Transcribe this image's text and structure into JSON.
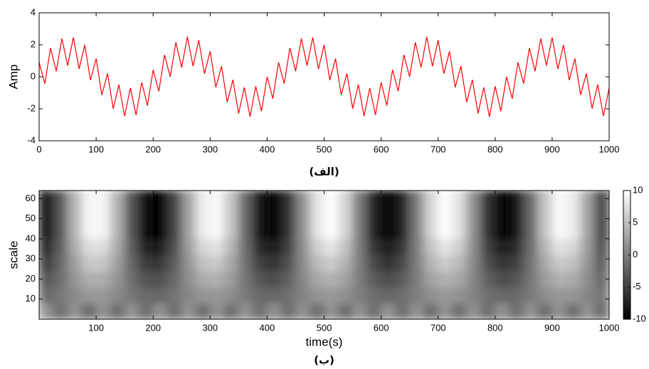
{
  "chart_data": [
    {
      "type": "line",
      "ylabel": "Amp",
      "caption": "(الف)",
      "color": "#ff0000",
      "xlim": [
        0,
        1000
      ],
      "xticks": [
        0,
        100,
        200,
        300,
        400,
        500,
        600,
        700,
        800,
        900,
        1000
      ],
      "ylim": [
        -4,
        4
      ],
      "yticks": [
        -4,
        -2,
        0,
        2,
        4
      ],
      "x": [
        0,
        10,
        20,
        30,
        40,
        50,
        60,
        70,
        80,
        90,
        100,
        110,
        120,
        130,
        140,
        150,
        160,
        170,
        180,
        190,
        200,
        210,
        220,
        230,
        240,
        250,
        260,
        270,
        280,
        290,
        300,
        310,
        320,
        330,
        340,
        350,
        360,
        370,
        380,
        390,
        400,
        410,
        420,
        430,
        440,
        450,
        460,
        470,
        480,
        490,
        500,
        510,
        520,
        530,
        540,
        550,
        560,
        570,
        580,
        590,
        600,
        610,
        620,
        630,
        640,
        650,
        660,
        670,
        680,
        690,
        700,
        710,
        720,
        730,
        740,
        750,
        760,
        770,
        780,
        790,
        800,
        810,
        820,
        830,
        840,
        850,
        860,
        870,
        880,
        890,
        900,
        910,
        920,
        930,
        940,
        950,
        960,
        970,
        980,
        990,
        1000
      ],
      "values": [
        0.9,
        -0.43,
        1.8,
        0.35,
        2.39,
        0.7,
        2.46,
        0.49,
        1.99,
        -0.21,
        1.14,
        -1.14,
        0.21,
        -1.99,
        -0.49,
        -2.46,
        -0.7,
        -2.39,
        -0.35,
        -1.8,
        0.43,
        -0.9,
        1.37,
        0,
        2.15,
        0.59,
        2.5,
        0.66,
        2.29,
        0.19,
        1.59,
        -0.66,
        0.66,
        -1.59,
        -0.19,
        -2.29,
        -0.66,
        -2.5,
        -0.59,
        -2.15,
        0,
        -1.37,
        0.9,
        -0.43,
        1.8,
        0.35,
        2.39,
        0.7,
        2.46,
        0.49,
        1.99,
        -0.21,
        1.14,
        -1.14,
        0.21,
        -1.99,
        -0.49,
        -2.46,
        -0.7,
        -2.39,
        -0.35,
        -1.8,
        0.43,
        -0.9,
        1.37,
        0,
        2.15,
        0.59,
        2.5,
        0.66,
        2.29,
        0.19,
        1.59,
        -0.66,
        0.66,
        -1.59,
        -0.19,
        -2.29,
        -0.66,
        -2.5,
        -0.59,
        -2.15,
        0,
        -1.37,
        0.9,
        -0.43,
        1.8,
        0.35,
        2.39,
        0.7,
        2.46,
        0.49,
        1.99,
        -0.21,
        1.14,
        -1.14,
        0.21,
        -1.99,
        -0.49,
        -2.46,
        -0.7
      ]
    },
    {
      "type": "heatmap",
      "xlabel": "time(s)",
      "ylabel": "scale",
      "caption": "(ب)",
      "colormap": "gray",
      "xlim": [
        0,
        1000
      ],
      "xticks": [
        100,
        200,
        300,
        400,
        500,
        600,
        700,
        800,
        900,
        1000
      ],
      "ylim": [
        0,
        64
      ],
      "yticks": [
        10,
        20,
        30,
        40,
        50,
        60
      ],
      "clim": [
        -10,
        10
      ],
      "cbarticks": [
        -10,
        -5,
        0,
        5,
        10
      ],
      "x": [
        12.5,
        37.5,
        62.5,
        87.5,
        112.5,
        137.5,
        162.5,
        187.5,
        212.5,
        237.5,
        262.5,
        287.5,
        312.5,
        337.5,
        362.5,
        387.5,
        412.5,
        437.5,
        462.5,
        487.5,
        512.5,
        537.5,
        562.5,
        587.5,
        612.5,
        637.5,
        662.5,
        687.5,
        712.5,
        737.5,
        762.5,
        787.5,
        812.5,
        837.5,
        862.5,
        887.5,
        912.5,
        937.5,
        962.5,
        987.5
      ],
      "y": [
        4,
        12,
        20,
        28,
        36,
        44,
        52,
        60
      ],
      "z": [
        [
          1.5,
          -1.5,
          1.5,
          -1.5,
          1.5,
          -1.5,
          1.5,
          -1.5,
          1.5,
          -1.5,
          1.5,
          -1.5,
          1.5,
          -1.5,
          1.5,
          -1.5,
          1.5,
          -1.5,
          1.5,
          -1.5,
          1.5,
          -1.5,
          1.5,
          -1.5,
          1.5,
          -1.5,
          1.5,
          -1.5,
          1.5,
          -1.5,
          1.5,
          -1.5,
          1.5,
          -1.5,
          1.5,
          -1.5,
          1.5,
          -1.5,
          1.5,
          -1.5
        ],
        [
          -1.8,
          -0.7,
          0.8,
          1.9,
          1.9,
          0.8,
          -0.7,
          -1.8,
          -1.9,
          -1,
          0.6,
          1.7,
          1.9,
          1.1,
          -0.4,
          -1.6,
          -2,
          -1.2,
          0.2,
          1.5,
          2,
          1.3,
          -0.1,
          -1.4,
          -2,
          -1.4,
          -0.1,
          1.3,
          2,
          1.5,
          0.2,
          -1.2,
          -2,
          -1.6,
          -0.4,
          1.1,
          1.9,
          1.7,
          0.6,
          -1
        ],
        [
          -3.6,
          -1.4,
          1.6,
          3.7,
          3.7,
          1.6,
          -1.4,
          -3.6,
          -3.8,
          -1.9,
          1.1,
          3.4,
          3.9,
          2.2,
          -0.8,
          -3.3,
          -4,
          -2.4,
          0.5,
          3.1,
          4,
          2.7,
          -0.2,
          -2.9,
          -4,
          -2.9,
          -0.2,
          2.7,
          4,
          3.1,
          0.5,
          -2.4,
          -4,
          -3.3,
          -0.8,
          2.2,
          3.9,
          3.4,
          1.1,
          -1.9
        ],
        [
          -5.4,
          -2,
          2.5,
          5.6,
          5.6,
          2.5,
          -2,
          -5.4,
          -5.7,
          -2.9,
          1.6,
          5.2,
          5.8,
          3.2,
          -1.1,
          -4.9,
          -5.9,
          -3.7,
          0.7,
          4.6,
          6,
          4,
          -0.2,
          -4.3,
          -6,
          -4.3,
          -0.2,
          4,
          6,
          4.6,
          0.7,
          -3.7,
          -5.9,
          -4.9,
          -1.1,
          3.2,
          5.8,
          5.2,
          1.6,
          -2.9
        ],
        [
          -7.2,
          -2.7,
          3.3,
          7.4,
          7.4,
          3.3,
          -2.7,
          -7.2,
          -7.6,
          -3.8,
          2.2,
          6.9,
          7.8,
          4.3,
          -1.5,
          -6.6,
          -7.9,
          -4.9,
          1,
          6.2,
          8,
          5.4,
          -0.3,
          -5.8,
          -8,
          -5.8,
          -0.3,
          5.4,
          8,
          6.2,
          1,
          -4.9,
          -7.9,
          -6.6,
          -1.5,
          4.3,
          7.8,
          6.9,
          2.2,
          -3.8
        ],
        [
          -9,
          -3.4,
          4.1,
          9.3,
          9.3,
          4.1,
          -3.4,
          -9,
          -9.5,
          -4.8,
          2.7,
          8.6,
          9.7,
          5.4,
          -1.9,
          -8.2,
          -9.9,
          -6.1,
          1.2,
          7.7,
          10,
          6.7,
          -0.4,
          -7.2,
          -10,
          -7.2,
          -0.4,
          6.7,
          10,
          7.7,
          1.2,
          -6.1,
          -9.9,
          -8.2,
          -1.9,
          5.4,
          9.7,
          8.6,
          2.7,
          -4.8
        ],
        [
          -9,
          -3.4,
          4.1,
          9.3,
          9.3,
          4.1,
          -3.4,
          -9,
          -9.5,
          -4.8,
          2.7,
          8.6,
          9.7,
          5.4,
          -1.9,
          -8.2,
          -9.9,
          -6.1,
          1.2,
          7.7,
          10,
          6.7,
          -0.4,
          -7.2,
          -10,
          -7.2,
          -0.4,
          6.7,
          10,
          7.7,
          1.2,
          -6.1,
          -9.9,
          -8.2,
          -1.9,
          5.4,
          9.7,
          8.6,
          2.7,
          -4.8
        ],
        [
          -9,
          -3.4,
          4.1,
          9.3,
          9.3,
          4.1,
          -3.4,
          -9,
          -9.5,
          -4.8,
          2.7,
          8.6,
          9.7,
          5.4,
          -1.9,
          -8.2,
          -9.9,
          -6.1,
          1.2,
          7.7,
          10,
          6.7,
          -0.4,
          -7.2,
          -10,
          -7.2,
          -0.4,
          6.7,
          10,
          7.7,
          1.2,
          -6.1,
          -9.9,
          -8.2,
          -1.9,
          5.4,
          9.7,
          8.6,
          2.7,
          -4.8
        ]
      ]
    }
  ]
}
